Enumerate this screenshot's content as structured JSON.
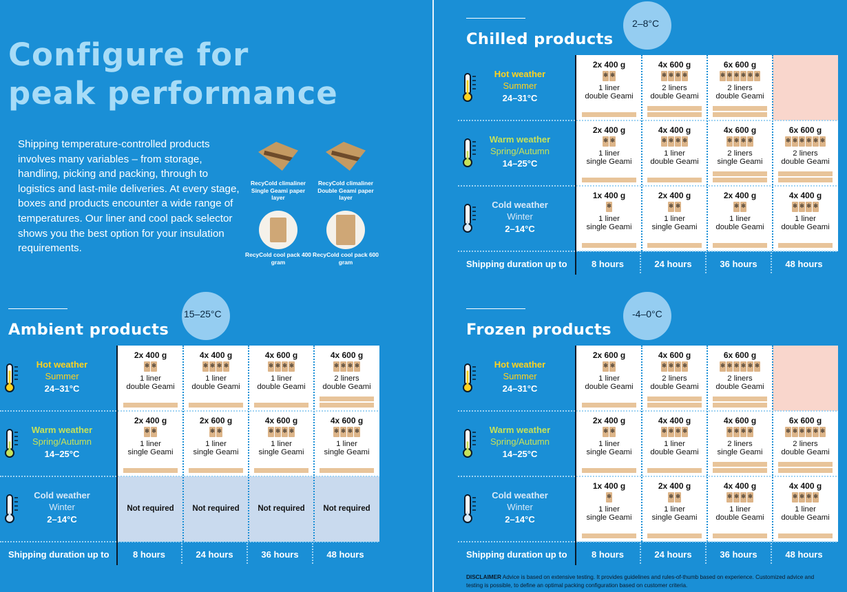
{
  "headline": "Configure for\npeak performance",
  "intro": "Shipping temperature-controlled products involves many variables – from storage, handling, picking and packing, through to logistics and last-mile deliveries. At every stage, boxes and products encounter a wide range of temperatures. Our liner and cool pack selector shows you the best option for your insulation requirements.",
  "products": [
    {
      "caption": "RecyCold climaliner Single Geami paper layer",
      "icon": "single-geami-liner"
    },
    {
      "caption": "RecyCold climaliner Double Geami paper layer",
      "icon": "double-geami-liner"
    },
    {
      "caption": "RecyCold cool pack 400 gram",
      "icon": "cool-pack-400"
    },
    {
      "caption": "RecyCold cool pack 600 gram",
      "icon": "cool-pack-600"
    }
  ],
  "rows": [
    {
      "weather": "Hot weather",
      "season": "Summer",
      "temp": "24–31°C"
    },
    {
      "weather": "Warm weather",
      "season": "Spring/Autumn",
      "temp": "14–25°C"
    },
    {
      "weather": "Cold weather",
      "season": "Winter",
      "temp": "2–14°C"
    }
  ],
  "shipping_label": "Shipping duration up to",
  "durations": [
    "8 hours",
    "24 hours",
    "36 hours",
    "48 hours"
  ],
  "colors": {
    "background": "#1a8fd6",
    "hot": "#ffd21f",
    "warm": "#c6e25a",
    "cold": "#d8e9f8",
    "not_available": "#f9d6cc",
    "not_required": "#c9daee",
    "pack": "#ddb589",
    "liner_bar": "#e8c49a"
  },
  "sections": {
    "ambient": {
      "title": "Ambient products",
      "temp": "15–25°C",
      "cells": [
        [
          {
            "amount": "2x 400 g",
            "packs": 2,
            "liners": "1 liner",
            "geami": "double Geami",
            "bars": 1
          },
          {
            "amount": "4x 400 g",
            "packs": 4,
            "liners": "1 liner",
            "geami": "double Geami",
            "bars": 1
          },
          {
            "amount": "4x 600 g",
            "packs": 4,
            "liners": "1 liner",
            "geami": "double Geami",
            "bars": 1
          },
          {
            "amount": "4x 600 g",
            "packs": 4,
            "liners": "2 liners",
            "geami": "double Geami",
            "bars": 2
          }
        ],
        [
          {
            "amount": "2x 400 g",
            "packs": 2,
            "liners": "1 liner",
            "geami": "single Geami",
            "bars": 1
          },
          {
            "amount": "2x 600 g",
            "packs": 2,
            "liners": "1 liner",
            "geami": "single Geami",
            "bars": 1
          },
          {
            "amount": "4x 600 g",
            "packs": 4,
            "liners": "1 liner",
            "geami": "single Geami",
            "bars": 1
          },
          {
            "amount": "4x 600 g",
            "packs": 4,
            "liners": "1 liner",
            "geami": "single Geami",
            "bars": 1
          }
        ],
        [
          {
            "note": "Not required"
          },
          {
            "note": "Not required"
          },
          {
            "note": "Not required"
          },
          {
            "note": "Not required"
          }
        ]
      ]
    },
    "chilled": {
      "title": "Chilled products",
      "temp": "2–8°C",
      "cells": [
        [
          {
            "amount": "2x 400 g",
            "packs": 2,
            "liners": "1 liner",
            "geami": "double Geami",
            "bars": 1
          },
          {
            "amount": "4x 600 g",
            "packs": 4,
            "liners": "2 liners",
            "geami": "double Geami",
            "bars": 2
          },
          {
            "amount": "6x 600 g",
            "packs": 6,
            "liners": "2 liners",
            "geami": "double Geami",
            "bars": 2
          },
          {
            "empty": true
          }
        ],
        [
          {
            "amount": "2x 400 g",
            "packs": 2,
            "liners": "1 liner",
            "geami": "single Geami",
            "bars": 1
          },
          {
            "amount": "4x 400 g",
            "packs": 4,
            "liners": "1 liner",
            "geami": "double Geami",
            "bars": 1
          },
          {
            "amount": "4x 600 g",
            "packs": 4,
            "liners": "2 liners",
            "geami": "single Geami",
            "bars": 2
          },
          {
            "amount": "6x 600 g",
            "packs": 6,
            "liners": "2 liners",
            "geami": "double Geami",
            "bars": 2
          }
        ],
        [
          {
            "amount": "1x 400 g",
            "packs": 1,
            "liners": "1 liner",
            "geami": "single Geami",
            "bars": 1
          },
          {
            "amount": "2x 400 g",
            "packs": 2,
            "liners": "1 liner",
            "geami": "single Geami",
            "bars": 1
          },
          {
            "amount": "2x 400 g",
            "packs": 2,
            "liners": "1 liner",
            "geami": "double Geami",
            "bars": 1
          },
          {
            "amount": "4x 400 g",
            "packs": 4,
            "liners": "1 liner",
            "geami": "double Geami",
            "bars": 1
          }
        ]
      ]
    },
    "frozen": {
      "title": "Frozen products",
      "temp": "-4–0°C",
      "cells": [
        [
          {
            "amount": "2x 600 g",
            "packs": 2,
            "liners": "1 liner",
            "geami": "double Geami",
            "bars": 1
          },
          {
            "amount": "4x 600 g",
            "packs": 4,
            "liners": "2 liners",
            "geami": "double Geami",
            "bars": 2
          },
          {
            "amount": "6x 600 g",
            "packs": 6,
            "liners": "2 liners",
            "geami": "double Geami",
            "bars": 2
          },
          {
            "empty": true
          }
        ],
        [
          {
            "amount": "2x 400 g",
            "packs": 2,
            "liners": "1 liner",
            "geami": "single Geami",
            "bars": 1
          },
          {
            "amount": "4x 400 g",
            "packs": 4,
            "liners": "1 liner",
            "geami": "double Geami",
            "bars": 1
          },
          {
            "amount": "4x 600 g",
            "packs": 4,
            "liners": "2 liners",
            "geami": "single Geami",
            "bars": 2
          },
          {
            "amount": "6x 600 g",
            "packs": 6,
            "liners": "2 liners",
            "geami": "double Geami",
            "bars": 2
          }
        ],
        [
          {
            "amount": "1x 400 g",
            "packs": 1,
            "liners": "1 liner",
            "geami": "single Geami",
            "bars": 1
          },
          {
            "amount": "2x 400 g",
            "packs": 2,
            "liners": "1 liner",
            "geami": "single Geami",
            "bars": 1
          },
          {
            "amount": "4x 400 g",
            "packs": 4,
            "liners": "1 liner",
            "geami": "double Geami",
            "bars": 1
          },
          {
            "amount": "4x 400 g",
            "packs": 4,
            "liners": "1 liner",
            "geami": "double Geami",
            "bars": 1
          }
        ]
      ]
    }
  },
  "disclaimer": {
    "label": "DISCLAIMER",
    "text": "Advice is based on extensive testing. It provides guidelines and rules-of-thumb based on experience. Customized advice and testing is possible, to define an optimal packing configuration based on customer criteria."
  }
}
